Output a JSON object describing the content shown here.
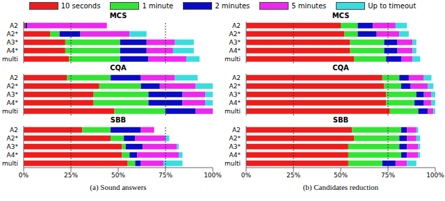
{
  "chart_data": {
    "type": "bar",
    "orientation": "horizontal",
    "stacked": true,
    "legend": "top",
    "series": [
      {
        "name": "10 seconds",
        "color": "#ee1c1c"
      },
      {
        "name": "1 minute",
        "color": "#33e533"
      },
      {
        "name": "2 minutes",
        "color": "#0a0ac8"
      },
      {
        "name": "5 minutes",
        "color": "#ee28ee"
      },
      {
        "name": "Up to timeout",
        "color": "#38dede"
      }
    ],
    "xlim": [
      0,
      100
    ],
    "xticks": [
      {
        "value": 0,
        "label": "0%"
      },
      {
        "value": 25,
        "label": "25%"
      },
      {
        "value": 50,
        "label": "50%"
      },
      {
        "value": 75,
        "label": "75%"
      },
      {
        "value": 100,
        "label": "100%"
      }
    ],
    "reference_lines": [
      25,
      75
    ],
    "panels": [
      {
        "title": "(a) Sound answers",
        "groups": [
          {
            "title": "MCS",
            "categories": [
              "A2",
              "A2*",
              "A3*",
              "A4*",
              "multi"
            ],
            "values": [
              [
                1,
                14,
                22,
                22,
                24
              ],
              [
                0,
                5,
                29,
                29,
                27
              ],
              [
                1,
                11,
                14,
                14,
                15
              ],
              [
                42,
                26,
                15,
                14,
                20
              ],
              [
                0,
                9,
                10,
                11,
                7
              ]
            ]
          },
          {
            "title": "CQA",
            "categories": [
              "A2",
              "A2*",
              "A3*",
              "A4*",
              "multi"
            ],
            "values": [
              [
                23,
                40,
                37,
                37,
                48
              ],
              [
                23,
                22,
                29,
                29,
                27
              ],
              [
                16,
                10,
                18,
                18,
                16
              ],
              [
                18,
                19,
                12,
                12,
                9
              ],
              [
                12,
                9,
                4,
                4,
                0
              ]
            ]
          },
          {
            "title": "SBB",
            "categories": [
              "A2",
              "A2*",
              "A3*",
              "A4*",
              "multi"
            ],
            "values": [
              [
                31,
                46,
                52,
                52,
                55
              ],
              [
                15,
                7,
                2,
                4,
                4
              ],
              [
                16,
                6,
                9,
                4,
                3
              ],
              [
                7,
                16,
                18,
                22,
                12
              ],
              [
                0,
                2,
                1,
                2,
                10
              ]
            ]
          }
        ]
      },
      {
        "title": "(b) Candidates reduction",
        "groups": [
          {
            "title": "MCS",
            "categories": [
              "A2",
              "A2*",
              "A3*",
              "A4*",
              "multi"
            ],
            "values": [
              [
                50,
                52,
                55,
                55,
                57
              ],
              [
                9,
                7,
                18,
                18,
                17
              ],
              [
                8,
                10,
                7,
                7,
                8
              ],
              [
                12,
                12,
                8,
                8,
                6
              ],
              [
                6,
                5,
                2,
                2,
                4
              ]
            ]
          },
          {
            "title": "CQA",
            "categories": [
              "A2",
              "A2*",
              "A3*",
              "A4*",
              "multi"
            ],
            "values": [
              [
                72,
                73,
                74,
                74,
                76
              ],
              [
                9,
                9,
                16,
                15,
                15
              ],
              [
                5,
                5,
                4,
                5,
                5
              ],
              [
                8,
                9,
                4,
                4,
                3
              ],
              [
                4,
                3,
                2,
                2,
                1
              ]
            ]
          },
          {
            "title": "SBB",
            "categories": [
              "A2",
              "A2*",
              "A3*",
              "A4*",
              "multi"
            ],
            "values": [
              [
                56,
                57,
                54,
                54,
                54
              ],
              [
                26,
                24,
                27,
                28,
                18
              ],
              [
                3,
                4,
                4,
                3,
                7
              ],
              [
                5,
                5,
                6,
                6,
                6
              ],
              [
                1,
                2,
                1,
                1,
                5
              ]
            ]
          }
        ]
      }
    ]
  }
}
